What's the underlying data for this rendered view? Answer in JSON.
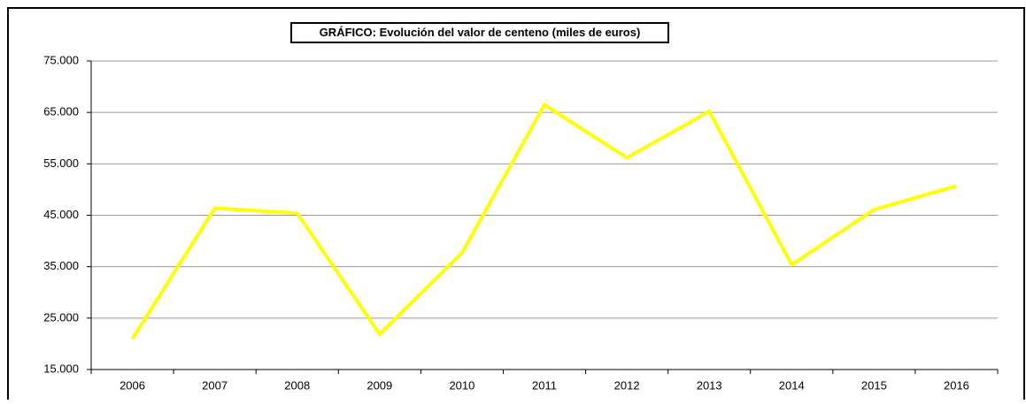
{
  "chart_data": {
    "type": "line",
    "title": "GRÁFICO: Evolución del valor de centeno (miles de euros)",
    "categories": [
      "2006",
      "2007",
      "2008",
      "2009",
      "2010",
      "2011",
      "2012",
      "2013",
      "2014",
      "2015",
      "2016"
    ],
    "values": [
      21000,
      46400,
      45400,
      21900,
      37700,
      66500,
      56200,
      65200,
      35400,
      46100,
      50700
    ],
    "color": "#ffff00",
    "ylim": [
      15000,
      75000
    ],
    "yticks": [
      {
        "value": 15000,
        "label": "15.000"
      },
      {
        "value": 25000,
        "label": "25.000"
      },
      {
        "value": 35000,
        "label": "35.000"
      },
      {
        "value": 45000,
        "label": "45.000"
      },
      {
        "value": 55000,
        "label": "55.000"
      },
      {
        "value": 65000,
        "label": "65.000"
      },
      {
        "value": 75000,
        "label": "75.000"
      }
    ],
    "grid": true
  }
}
